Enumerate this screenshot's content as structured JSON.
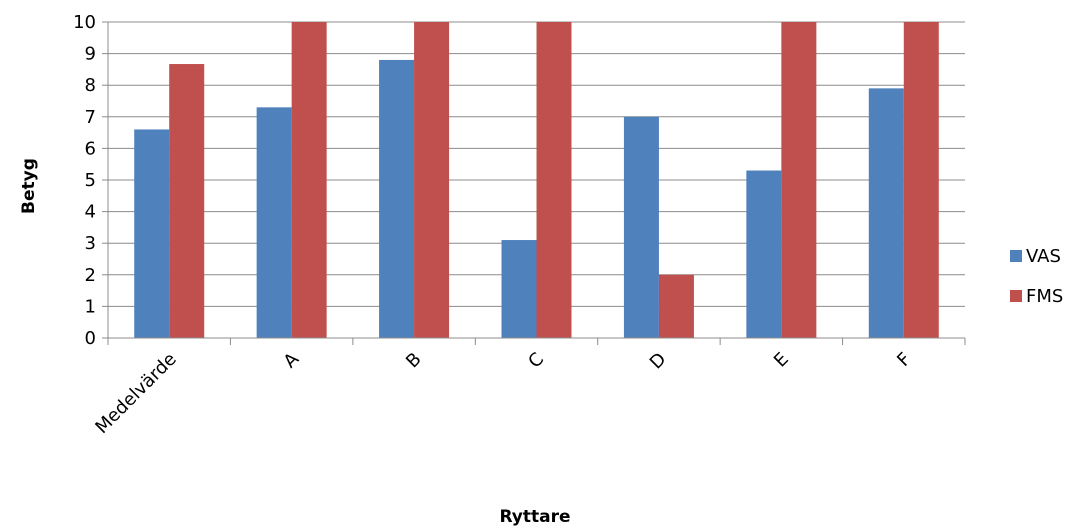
{
  "chart_data": {
    "type": "bar",
    "title": "",
    "xlabel": "Ryttare",
    "ylabel": "Betyg",
    "categories": [
      "Medelvärde",
      "A",
      "B",
      "C",
      "D",
      "E",
      "F"
    ],
    "series": [
      {
        "name": "VAS",
        "color": "#4f81bd",
        "values": [
          6.6,
          7.3,
          8.8,
          3.1,
          7.0,
          5.3,
          7.9
        ]
      },
      {
        "name": "FMS",
        "color": "#c0504d",
        "values": [
          8.67,
          10,
          10,
          10,
          2,
          10,
          10
        ]
      }
    ],
    "ylim": [
      0,
      10
    ],
    "yticks": [
      "0",
      "1",
      "2",
      "3",
      "4",
      "5",
      "6",
      "7",
      "8",
      "9",
      "10"
    ],
    "grid": true,
    "legend_position": "right"
  }
}
